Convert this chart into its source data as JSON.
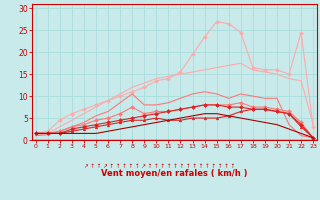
{
  "x": [
    0,
    1,
    2,
    3,
    4,
    5,
    6,
    7,
    8,
    9,
    10,
    11,
    12,
    13,
    14,
    15,
    16,
    17,
    18,
    19,
    20,
    21,
    22,
    23
  ],
  "series": [
    {
      "color": "#ffaaaa",
      "linewidth": 0.8,
      "marker": "D",
      "markersize": 2.0,
      "values": [
        1.5,
        2.0,
        4.5,
        6.0,
        7.0,
        8.0,
        9.0,
        10.0,
        11.0,
        12.0,
        13.5,
        14.0,
        15.5,
        19.5,
        23.5,
        27.0,
        26.5,
        24.5,
        16.5,
        16.0,
        16.0,
        15.0,
        24.5,
        3.0
      ]
    },
    {
      "color": "#ffaaaa",
      "linewidth": 0.8,
      "marker": null,
      "markersize": 0,
      "values": [
        1.0,
        1.5,
        3.0,
        4.5,
        6.0,
        7.5,
        9.0,
        10.5,
        12.0,
        13.0,
        14.0,
        14.5,
        15.0,
        15.5,
        16.0,
        16.5,
        17.0,
        17.5,
        16.0,
        15.5,
        15.0,
        14.0,
        13.5,
        3.5
      ]
    },
    {
      "color": "#ff7777",
      "linewidth": 0.8,
      "marker": null,
      "markersize": 0,
      "values": [
        1.0,
        1.2,
        2.0,
        3.0,
        4.0,
        5.5,
        6.5,
        8.5,
        10.5,
        8.0,
        8.0,
        8.5,
        9.5,
        10.5,
        11.0,
        10.5,
        9.5,
        10.5,
        10.0,
        9.5,
        9.5,
        3.5,
        1.0,
        0.5
      ]
    },
    {
      "color": "#ff7777",
      "linewidth": 0.8,
      "marker": "D",
      "markersize": 2.0,
      "values": [
        1.5,
        1.5,
        2.0,
        3.0,
        3.5,
        4.5,
        5.0,
        6.0,
        7.5,
        6.0,
        6.5,
        6.5,
        7.0,
        7.5,
        8.0,
        8.0,
        8.0,
        8.5,
        7.5,
        7.5,
        7.0,
        6.5,
        4.0,
        0.5
      ]
    },
    {
      "color": "#dd2222",
      "linewidth": 0.8,
      "marker": "D",
      "markersize": 2.0,
      "values": [
        1.5,
        1.5,
        1.5,
        2.5,
        3.0,
        3.5,
        4.0,
        4.5,
        5.0,
        5.5,
        6.0,
        6.5,
        7.0,
        7.5,
        8.0,
        8.0,
        7.5,
        7.5,
        7.0,
        7.0,
        6.5,
        6.0,
        3.5,
        0.5
      ]
    },
    {
      "color": "#dd2222",
      "linewidth": 0.8,
      "marker": "^",
      "markersize": 2.0,
      "values": [
        1.5,
        1.5,
        1.5,
        2.0,
        2.5,
        3.0,
        3.5,
        4.0,
        4.5,
        4.5,
        5.0,
        4.5,
        4.5,
        5.0,
        5.0,
        5.0,
        5.5,
        6.5,
        7.0,
        7.0,
        6.5,
        6.0,
        3.0,
        0.5
      ]
    },
    {
      "color": "#aa0000",
      "linewidth": 0.8,
      "marker": null,
      "markersize": 0,
      "values": [
        1.5,
        1.5,
        1.5,
        1.5,
        1.5,
        1.5,
        2.0,
        2.5,
        3.0,
        3.5,
        4.0,
        4.5,
        5.0,
        5.5,
        6.0,
        6.0,
        5.5,
        5.0,
        4.5,
        4.0,
        3.5,
        2.5,
        1.5,
        0.5
      ]
    }
  ],
  "xlim": [
    -0.3,
    23.3
  ],
  "ylim": [
    0,
    31
  ],
  "yticks": [
    0,
    5,
    10,
    15,
    20,
    25,
    30
  ],
  "xticks": [
    0,
    1,
    2,
    3,
    4,
    5,
    6,
    7,
    8,
    9,
    10,
    11,
    12,
    13,
    14,
    15,
    16,
    17,
    18,
    19,
    20,
    21,
    22,
    23
  ],
  "xlabel": "Vent moyen/en rafales ( km/h )",
  "bg_color": "#c8eaea",
  "grid_color": "#aadddd",
  "axis_color": "#cc0000",
  "label_color": "#cc0000",
  "tick_color": "#cc0000",
  "arrow_symbols": [
    "↗",
    "↑",
    "↑",
    "↗",
    "↑",
    "↑",
    "↑",
    "↑",
    "↑",
    "↗",
    "↑",
    "↑",
    "↑",
    "↑",
    "↑",
    "↑",
    "↑",
    "↑",
    "↑",
    "↑",
    "↑",
    "↑",
    "↑",
    "↑"
  ]
}
